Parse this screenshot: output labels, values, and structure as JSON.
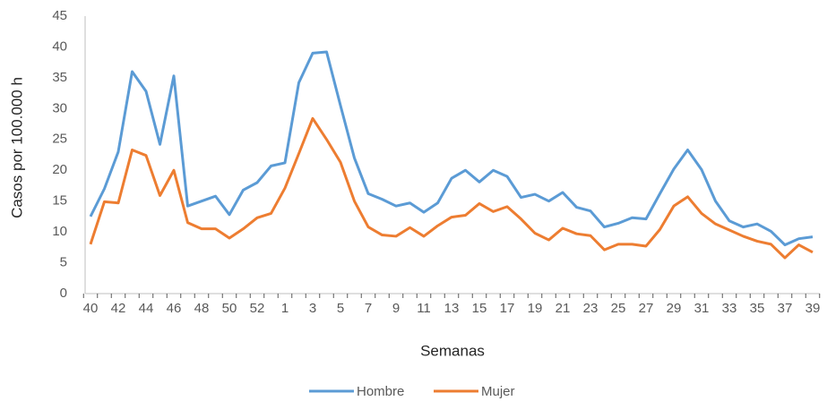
{
  "chart_data": {
    "type": "line",
    "x_label": "Semanas",
    "y_label": "Casos por 100.000 h",
    "categories": [
      "40",
      null,
      "42",
      null,
      "44",
      null,
      "46",
      null,
      "48",
      null,
      "50",
      null,
      "52",
      null,
      "1",
      null,
      "3",
      null,
      "5",
      null,
      "7",
      null,
      "9",
      null,
      "11",
      null,
      "13",
      null,
      "15",
      null,
      "17",
      null,
      "19",
      null,
      "21",
      null,
      "23",
      null,
      "25",
      null,
      "27",
      null,
      "29",
      null,
      "31",
      null,
      "33",
      null,
      "35",
      null,
      "37",
      null,
      "39"
    ],
    "series": [
      {
        "name": "Hombre",
        "color": "#5b9bd5",
        "values": [
          12.5,
          17,
          23,
          36,
          32.8,
          24.2,
          35.3,
          14.2,
          15,
          15.8,
          12.8,
          16.8,
          18,
          20.7,
          21.2,
          34.2,
          39,
          39.2,
          30.5,
          22,
          16.2,
          15.3,
          14.2,
          14.7,
          13.2,
          14.7,
          18.7,
          20,
          18.1,
          20,
          19,
          15.6,
          16.1,
          15,
          16.4,
          14,
          13.4,
          10.8,
          11.4,
          12.3,
          12.1,
          16.2,
          20.2,
          23.3,
          20.1,
          15,
          11.8,
          10.8,
          11.3,
          10.1,
          7.9,
          8.9,
          9.2
        ]
      },
      {
        "name": "Mujer",
        "color": "#ed7d31",
        "values": [
          8,
          14.9,
          14.7,
          23.3,
          22.4,
          15.9,
          20,
          11.5,
          10.5,
          10.5,
          9,
          10.5,
          12.3,
          13,
          17.1,
          22.7,
          28.4,
          25,
          21.3,
          15,
          10.8,
          9.5,
          9.3,
          10.7,
          9.3,
          11,
          12.4,
          12.7,
          14.6,
          13.3,
          14.1,
          12.1,
          9.8,
          8.7,
          10.6,
          9.7,
          9.4,
          7.1,
          8,
          8,
          7.7,
          10.4,
          14.2,
          15.7,
          13,
          11.3,
          10.3,
          9.3,
          8.5,
          8,
          5.8,
          7.9,
          6.7
        ]
      }
    ],
    "ylim": [
      0,
      45
    ],
    "yticks": [
      0,
      5,
      10,
      15,
      20,
      25,
      30,
      35,
      40,
      45
    ],
    "grid": false,
    "legend": "bottom"
  }
}
